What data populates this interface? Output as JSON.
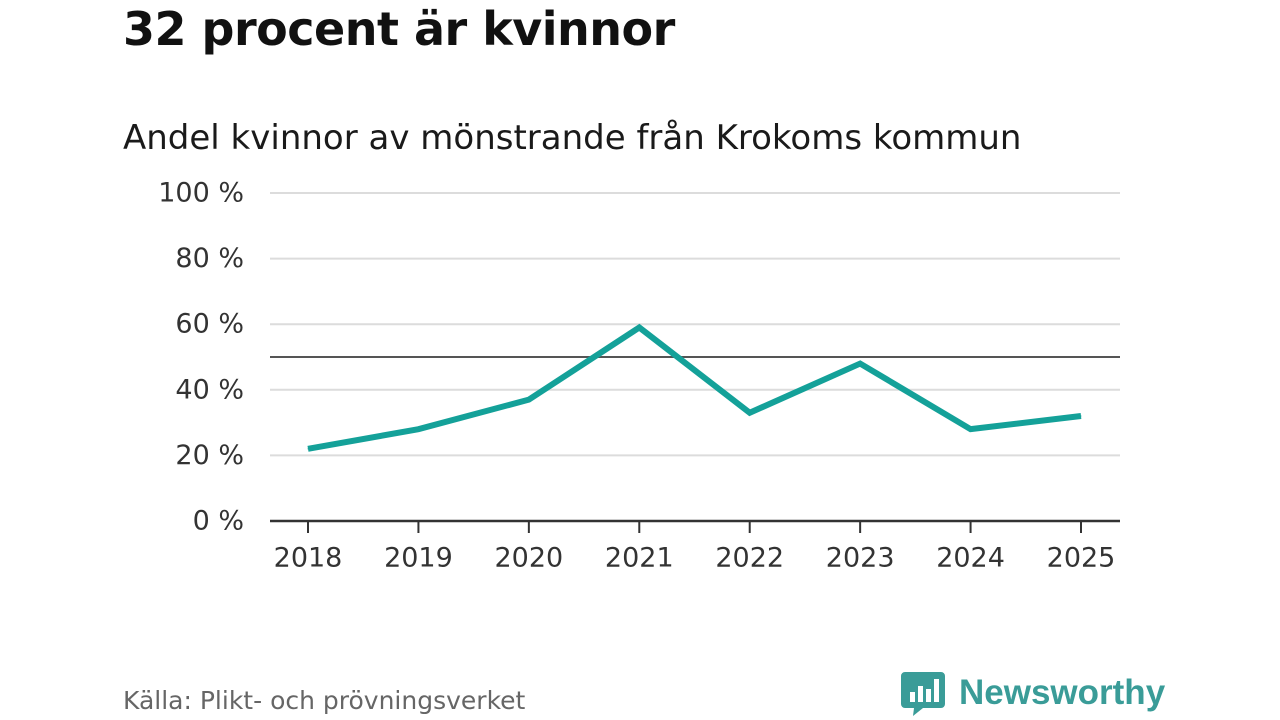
{
  "headline": "32 procent är kvinnor",
  "subtitle": "Andel kvinnor av mönstrande från Krokoms kommun",
  "source": "Källa: Plikt- och prövningsverket",
  "brand": {
    "name": "Newsworthy",
    "color": "#3a9c98",
    "logo_icon": "bar-chart-speech-bubble-icon"
  },
  "colors": {
    "line": "#14a199",
    "grid": "#dcdcdc",
    "reference": "#555555",
    "axis": "#333333",
    "text": "#333333"
  },
  "chart_data": {
    "type": "line",
    "title": "Andel kvinnor av mönstrande från Krokoms kommun",
    "xlabel": "",
    "ylabel": "",
    "ylim": [
      0,
      100
    ],
    "yticks": [
      0,
      20,
      40,
      60,
      80,
      100
    ],
    "ytick_labels": [
      "0 %",
      "20 %",
      "40 %",
      "60 %",
      "80 %",
      "100 %"
    ],
    "reference_line": 50,
    "grid": true,
    "categories": [
      "2018",
      "2019",
      "2020",
      "2021",
      "2022",
      "2023",
      "2024",
      "2025"
    ],
    "series": [
      {
        "name": "Andel kvinnor",
        "values": [
          22,
          28,
          37,
          59,
          33,
          48,
          28,
          32
        ]
      }
    ]
  }
}
